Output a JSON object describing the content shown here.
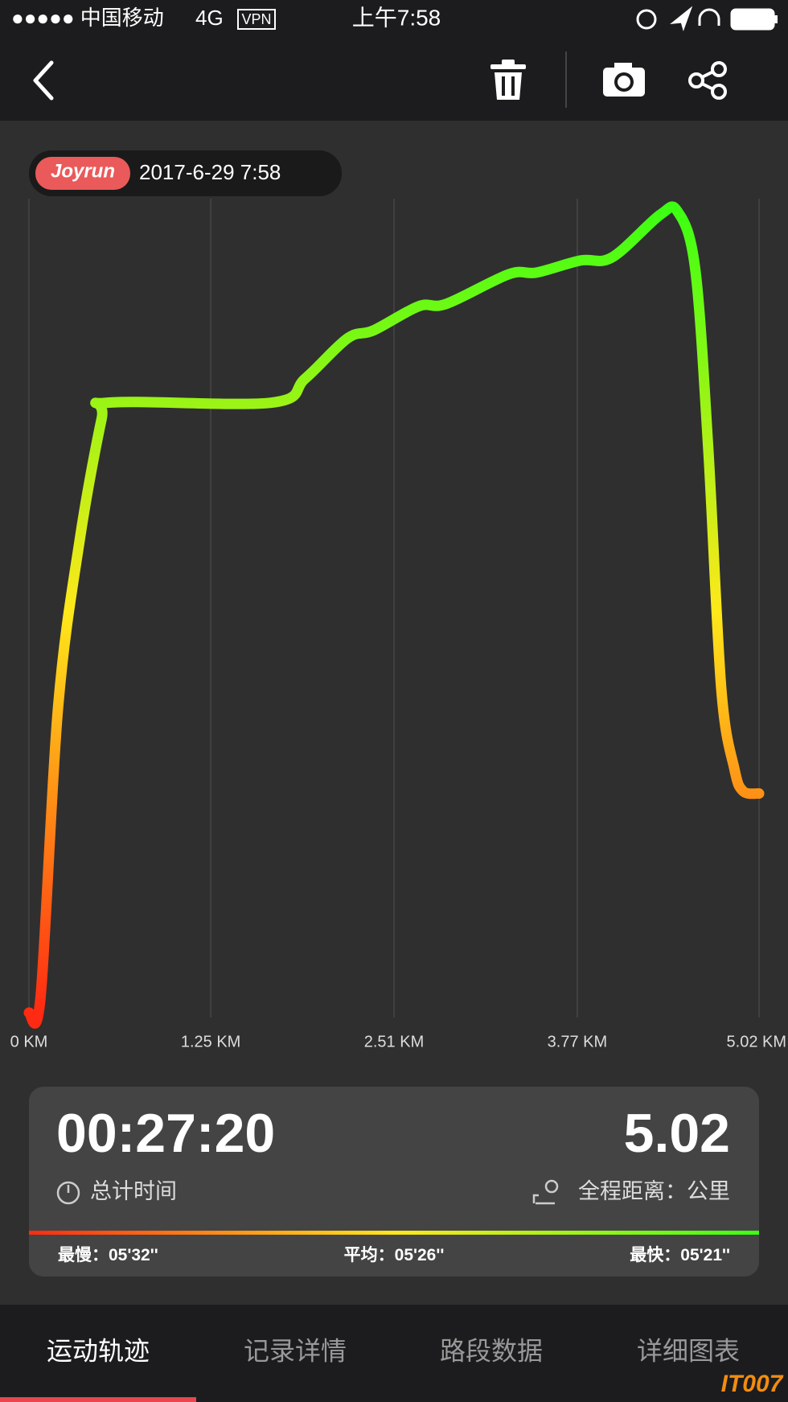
{
  "status_bar": {
    "carrier": "●●●●● 中国移动",
    "network": "4G",
    "vpn": "VPN",
    "time": "上午7:58"
  },
  "badge": {
    "brand": "Joyrun",
    "datetime": "2017-6-29 7:58"
  },
  "chart_data": {
    "type": "line",
    "x": [
      0,
      0.08,
      0.2,
      0.35,
      0.5,
      0.55,
      1.67,
      1.9,
      2.19,
      2.37,
      2.68,
      2.87,
      3.3,
      3.49,
      3.79,
      4.01,
      4.34,
      4.46,
      4.58,
      4.67,
      4.76,
      4.85,
      4.91,
      5.02
    ],
    "series": [
      {
        "values": [
          0,
          2,
          38,
          59,
          74,
          76,
          76,
          79,
          84,
          85,
          88,
          88.3,
          92,
          92.2,
          93.7,
          94.1,
          99.4,
          99.8,
          92.8,
          70.5,
          40.4,
          30.4,
          27.6,
          27.3
        ],
        "colors": [
          "#ff2a12",
          "#ffe81a",
          "#3dff12"
        ]
      }
    ],
    "xlim": [
      0,
      5.02
    ],
    "ylim": [
      0,
      100
    ],
    "xticks": [
      {
        "value": 0,
        "label": "0 KM"
      },
      {
        "value": 1.25,
        "label": "1.25 KM"
      },
      {
        "value": 2.51,
        "label": "2.51 KM"
      },
      {
        "value": 3.77,
        "label": "3.77 KM"
      },
      {
        "value": 5.02,
        "label": "5.02 KM"
      }
    ],
    "grid": true
  },
  "stats": {
    "duration": "00:27:20",
    "duration_label": "总计时间",
    "distance": "5.02",
    "distance_label": "全程距离：公里",
    "slowest_label": "最慢：",
    "slowest": "05'32''",
    "average_label": "平均：",
    "average": "05'26''",
    "fastest_label": "最快：",
    "fastest": "05'21''"
  },
  "tabs": [
    "运动轨迹",
    "记录详情",
    "路段数据",
    "详细图表"
  ],
  "watermark": "IT007"
}
